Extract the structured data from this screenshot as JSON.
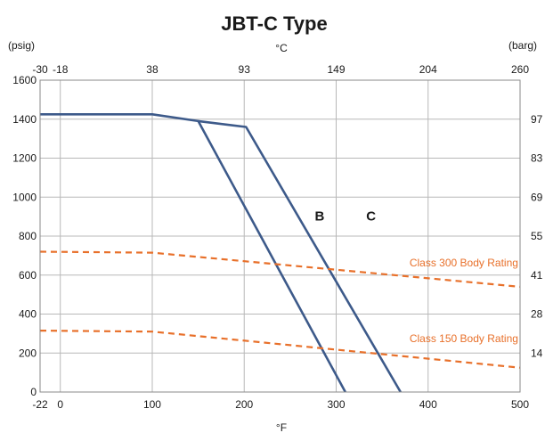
{
  "chart_data": {
    "type": "line",
    "title": "JBT-C Type",
    "left_unit": "(psig)",
    "right_unit": "(barg)",
    "top_unit": "°C",
    "bottom_unit": "°F",
    "xlim": [
      -22,
      500
    ],
    "ylim": [
      0,
      1600
    ],
    "x_ticks": [
      {
        "value": -22,
        "label": "-22"
      },
      {
        "value": 0,
        "label": "0"
      },
      {
        "value": 100,
        "label": "100"
      },
      {
        "value": 200,
        "label": "200"
      },
      {
        "value": 300,
        "label": "300"
      },
      {
        "value": 400,
        "label": "400"
      },
      {
        "value": 500,
        "label": "500"
      }
    ],
    "top_ticks": [
      {
        "value": -22,
        "label": "-30"
      },
      {
        "value": 0,
        "label": "-18"
      },
      {
        "value": 100,
        "label": "38"
      },
      {
        "value": 200,
        "label": "93"
      },
      {
        "value": 300,
        "label": "149"
      },
      {
        "value": 400,
        "label": "204"
      },
      {
        "value": 500,
        "label": "260"
      }
    ],
    "y_ticks": [
      0,
      200,
      400,
      600,
      800,
      1000,
      1200,
      1400,
      1600
    ],
    "right_ticks": [
      {
        "value": 1400,
        "label": "97"
      },
      {
        "value": 1200,
        "label": "83"
      },
      {
        "value": 1000,
        "label": "69"
      },
      {
        "value": 800,
        "label": "55"
      },
      {
        "value": 600,
        "label": "41"
      },
      {
        "value": 400,
        "label": "28"
      },
      {
        "value": 200,
        "label": "14"
      }
    ],
    "grid": true,
    "series": [
      {
        "name": "B",
        "color": "#3d5a8a",
        "style": "solid",
        "points": [
          [
            -22,
            1425
          ],
          [
            100,
            1425
          ],
          [
            150,
            1390
          ],
          [
            310,
            0
          ]
        ],
        "label_at": [
          282,
          880
        ]
      },
      {
        "name": "C",
        "color": "#3d5a8a",
        "style": "solid",
        "points": [
          [
            150,
            1390
          ],
          [
            202,
            1360
          ],
          [
            370,
            0
          ]
        ],
        "label_at": [
          338,
          880
        ]
      },
      {
        "name": "Class 300 Body Rating",
        "color": "#e8702a",
        "style": "dashed",
        "points": [
          [
            -22,
            720
          ],
          [
            100,
            715
          ],
          [
            500,
            540
          ]
        ],
        "label_at": [
          498,
          645
        ]
      },
      {
        "name": "Class 150 Body Rating",
        "color": "#e8702a",
        "style": "dashed",
        "points": [
          [
            -22,
            315
          ],
          [
            100,
            310
          ],
          [
            500,
            125
          ]
        ],
        "label_at": [
          498,
          255
        ]
      }
    ]
  }
}
